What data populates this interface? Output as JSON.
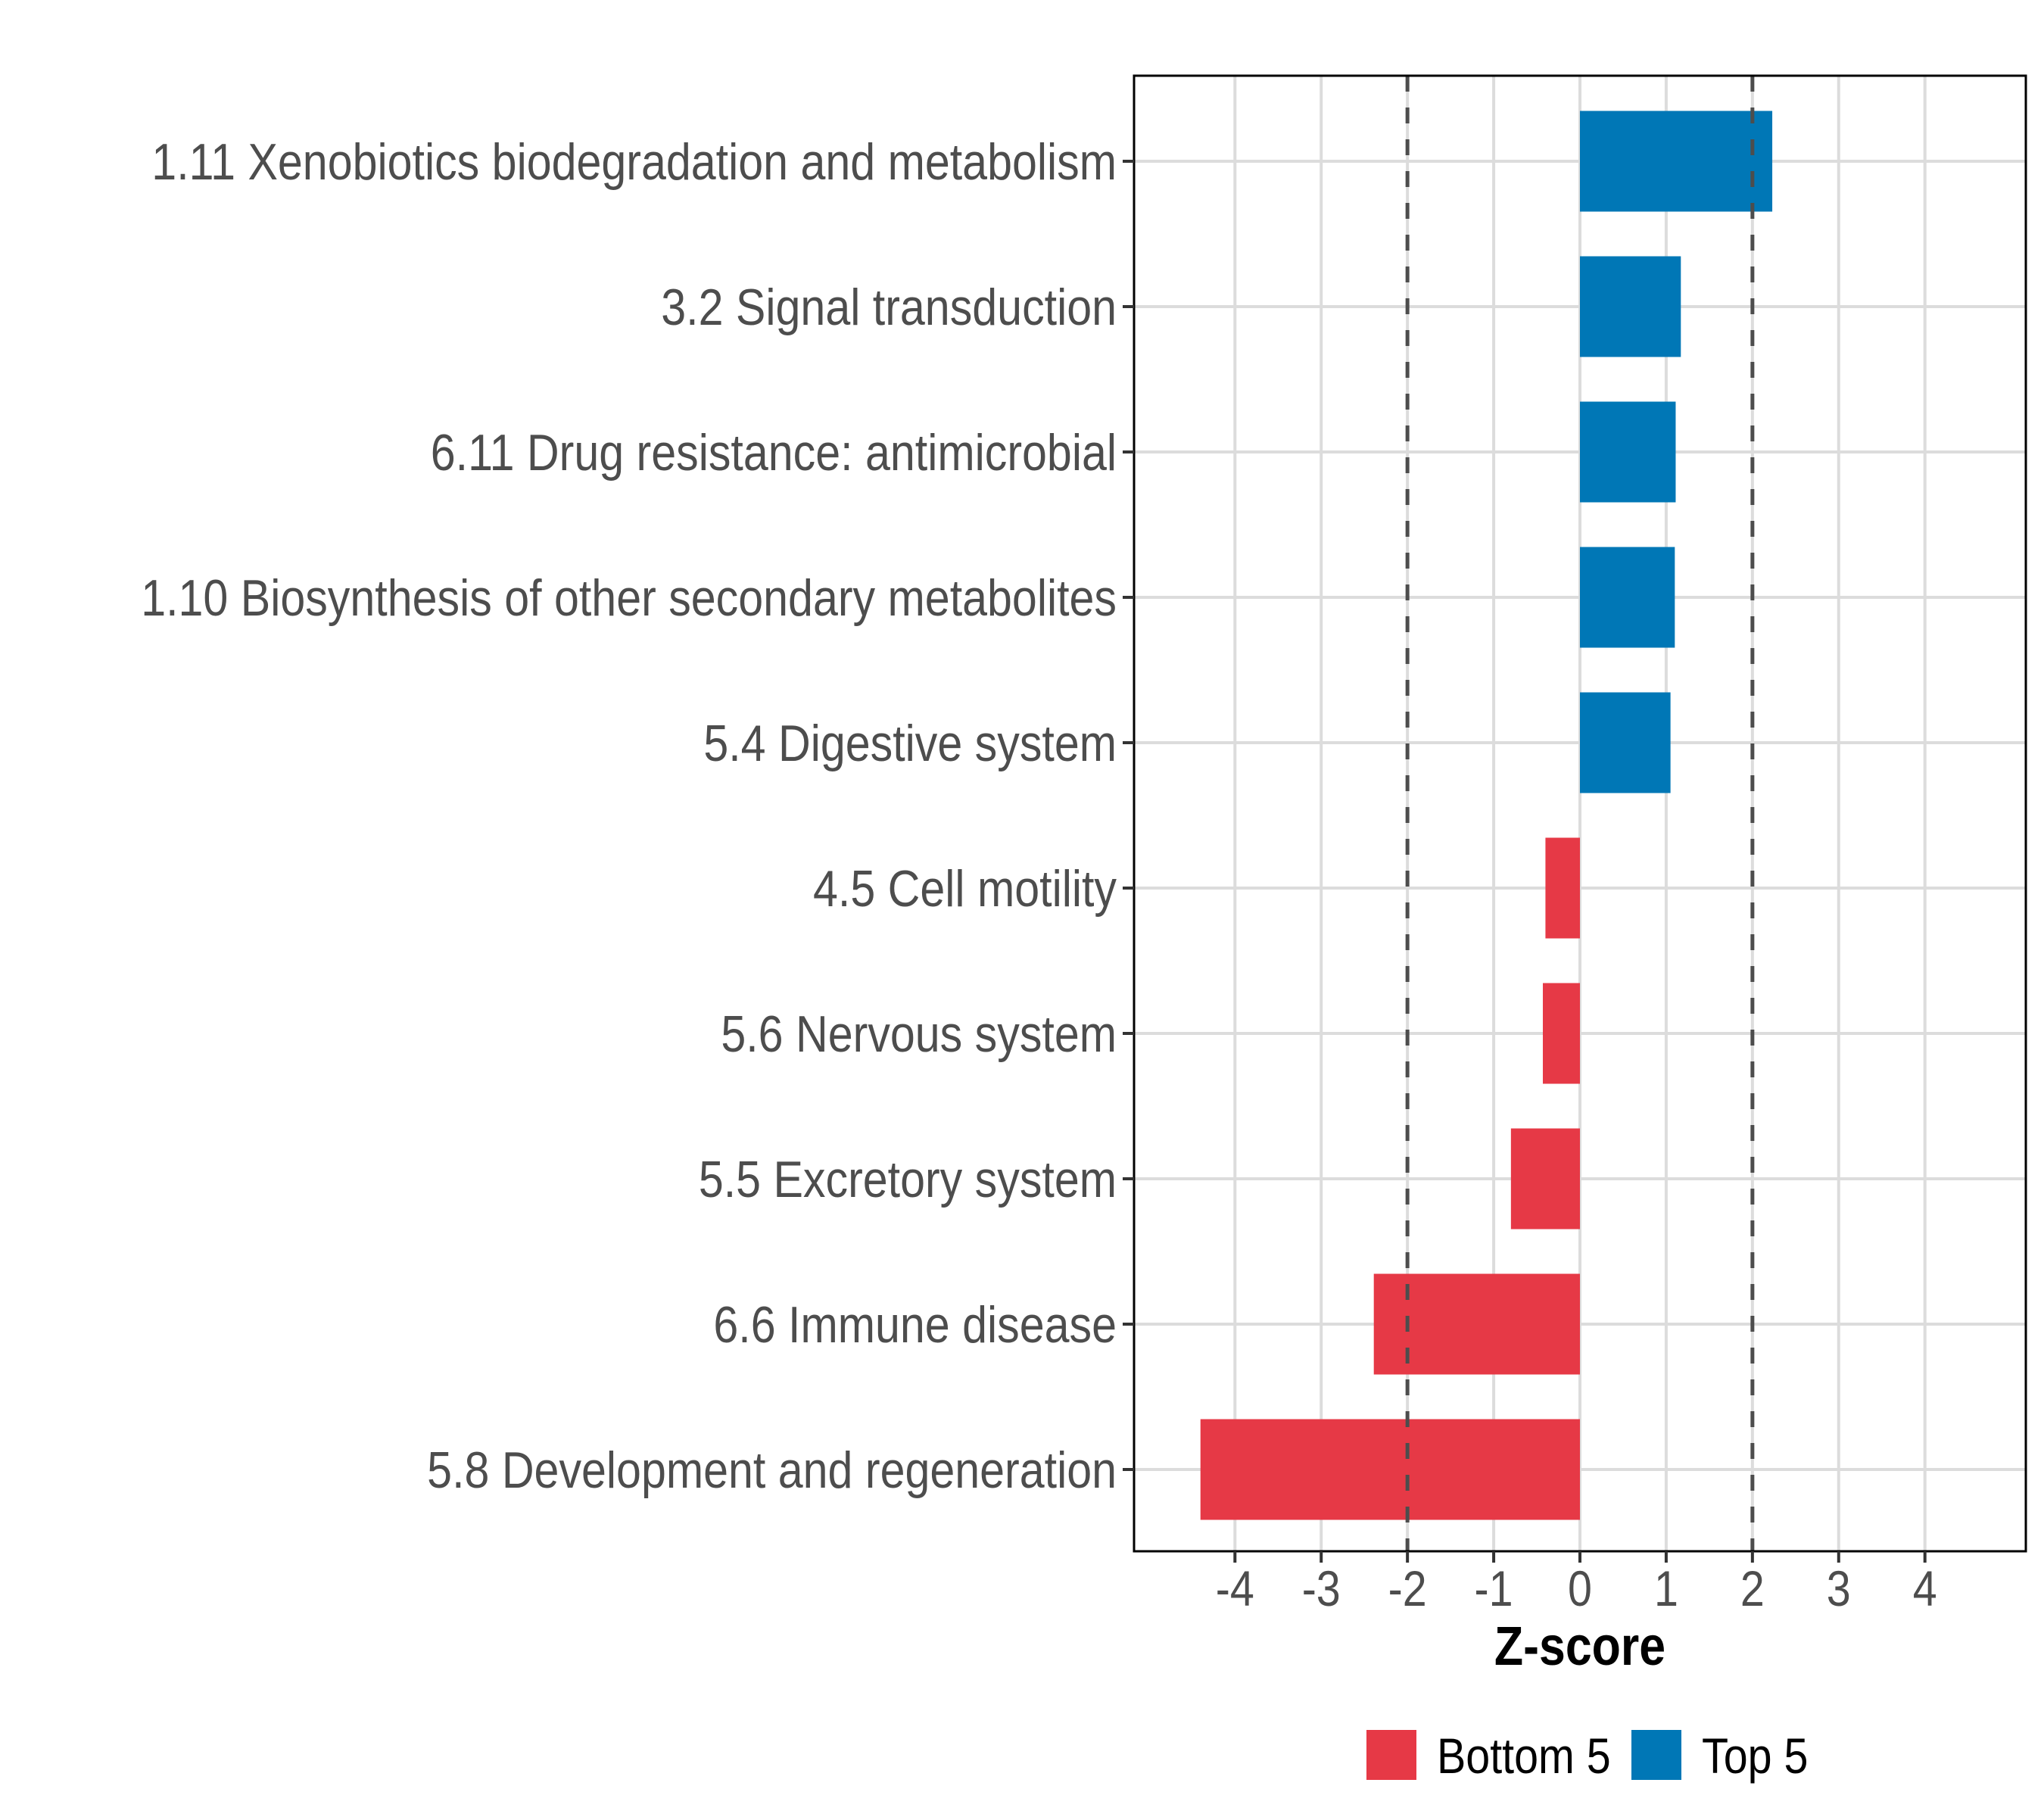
{
  "chart_data": {
    "type": "bar",
    "orientation": "horizontal",
    "title": "",
    "xlabel": "Z-score",
    "ylabel": "",
    "xlim": [
      -5.17,
      5.17
    ],
    "x_ticks": [
      -4,
      -3,
      -2,
      -1,
      0,
      1,
      2,
      3,
      4
    ],
    "x_tick_labels": [
      "-4",
      "-3",
      "-2",
      "-1",
      "0",
      "1",
      "2",
      "3",
      "4"
    ],
    "grid": true,
    "reference_lines": [
      {
        "axis": "x",
        "value": -2,
        "style": "dashed"
      },
      {
        "axis": "x",
        "value": 2,
        "style": "dashed"
      }
    ],
    "categories": [
      "1.11 Xenobiotics biodegradation and metabolism",
      "3.2 Signal transduction",
      "6.11 Drug resistance: antimicrobial",
      "1.10 Biosynthesis of other secondary metabolites",
      "5.4 Digestive system",
      "4.5 Cell motility",
      "5.6 Nervous system",
      "5.5 Excretory system",
      "6.6 Immune disease",
      "5.8 Development and regeneration"
    ],
    "values": [
      2.23,
      1.17,
      1.11,
      1.1,
      1.05,
      -0.4,
      -0.43,
      -0.8,
      -2.39,
      -4.4
    ],
    "groups": [
      "Top 5",
      "Top 5",
      "Top 5",
      "Top 5",
      "Top 5",
      "Bottom 5",
      "Bottom 5",
      "Bottom 5",
      "Bottom 5",
      "Bottom 5"
    ],
    "legend": {
      "placement": "bottom",
      "entries": [
        {
          "name": "Bottom 5",
          "color": "#e63946"
        },
        {
          "name": "Top 5",
          "color": "#0077b6"
        }
      ]
    },
    "colors": {
      "Bottom 5": "#e63946",
      "Top 5": "#0077b6",
      "grid": "#dcdcdc",
      "reference_line": "#4d4d4d",
      "axis_text": "#4d4d4d"
    }
  }
}
